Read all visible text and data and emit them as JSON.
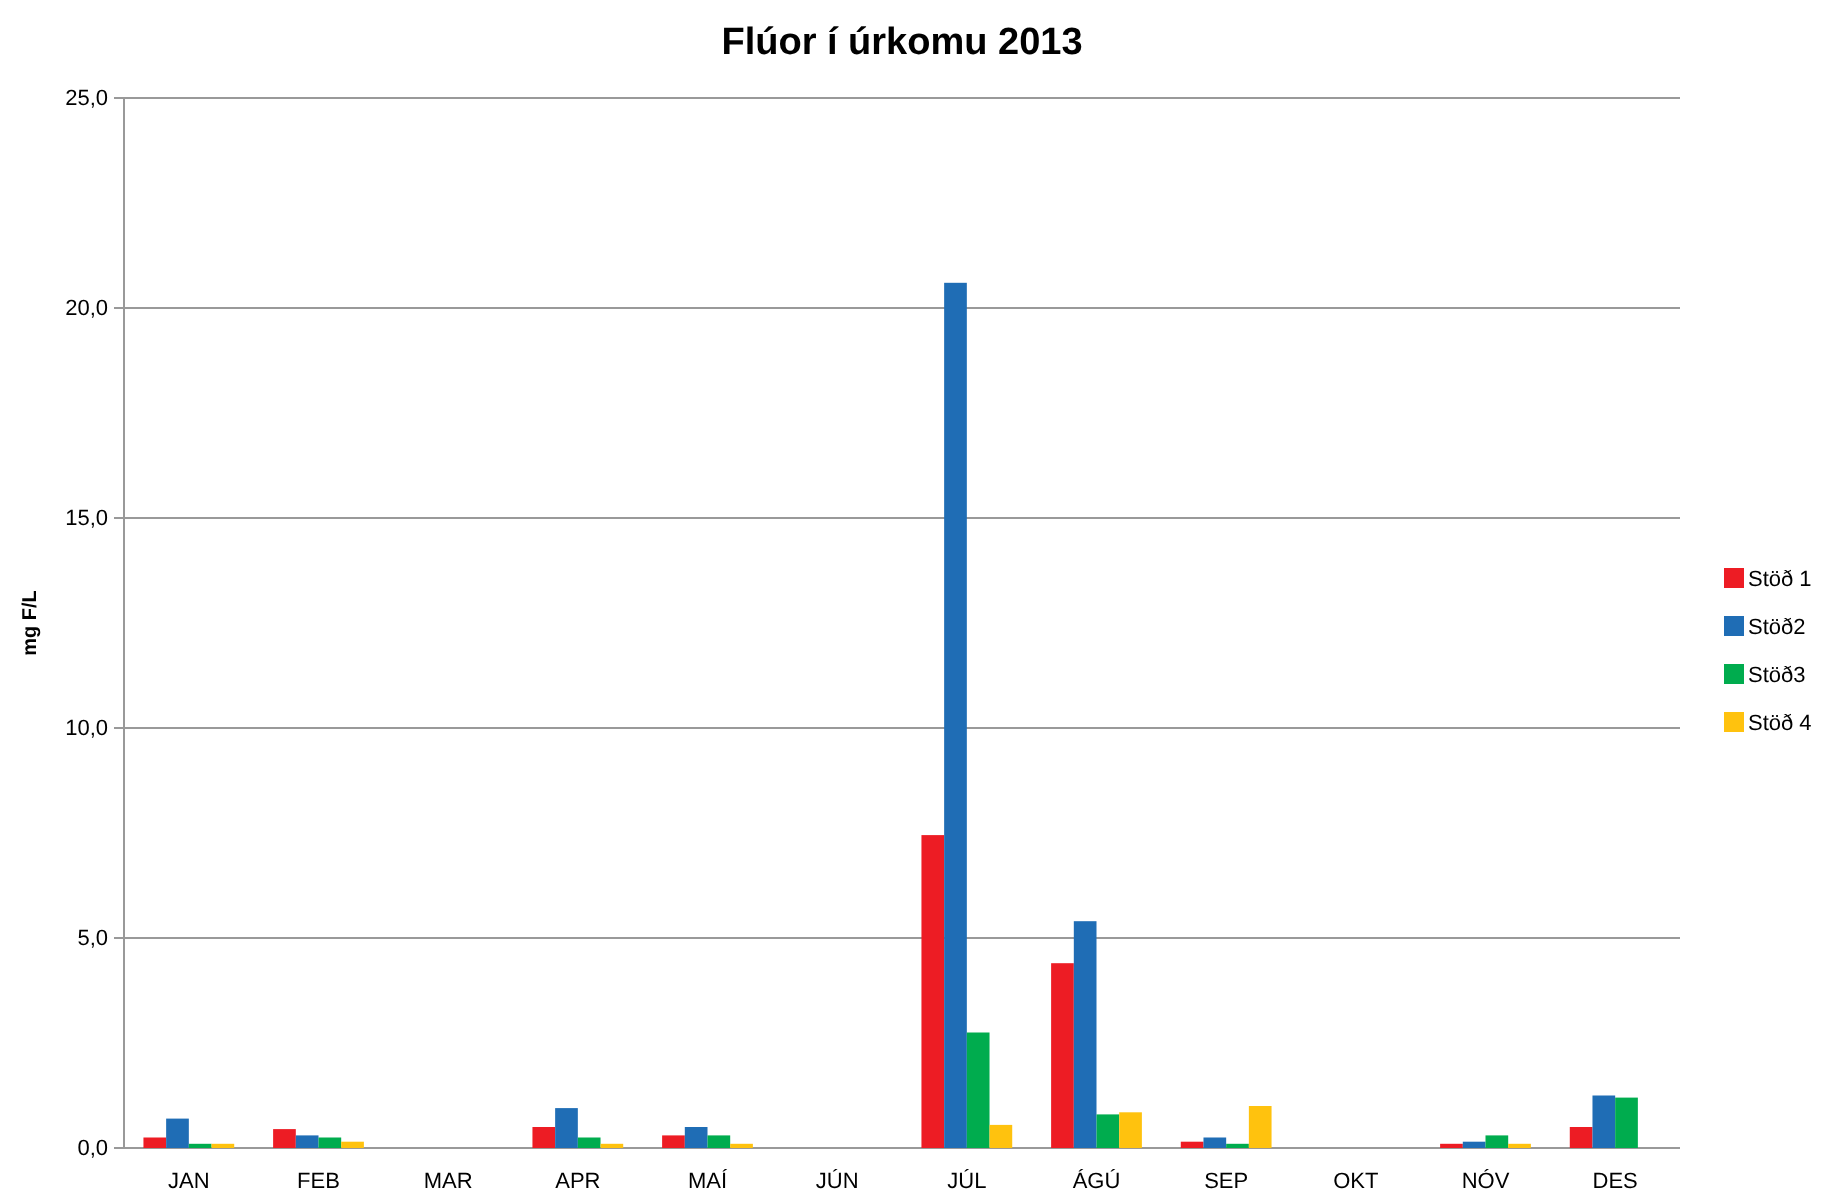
{
  "chart_data": {
    "type": "bar",
    "title": "Flúor í úrkomu 2013",
    "ylabel": "mg F/L",
    "categories": [
      "JAN",
      "FEB",
      "MAR",
      "APR",
      "MAÍ",
      "JÚN",
      "JÚL",
      "ÁGÚ",
      "SEP",
      "OKT",
      "NÓV",
      "DES"
    ],
    "series": [
      {
        "name": "Stöð 1",
        "color": "#ed1c24",
        "values": [
          0.25,
          0.45,
          null,
          0.5,
          0.3,
          null,
          7.45,
          4.4,
          0.15,
          null,
          0.1,
          0.5
        ]
      },
      {
        "name": "Stöð2",
        "color": "#1f6db5",
        "values": [
          0.7,
          0.3,
          null,
          0.95,
          0.5,
          null,
          20.6,
          5.4,
          0.25,
          null,
          0.15,
          1.25
        ]
      },
      {
        "name": "Stöð3",
        "color": "#00ac4e",
        "values": [
          0.1,
          0.25,
          null,
          0.25,
          0.3,
          null,
          2.75,
          0.8,
          0.1,
          null,
          0.3,
          1.2
        ]
      },
      {
        "name": "Stöð 4",
        "color": "#ffc20e",
        "values": [
          0.1,
          0.15,
          null,
          0.1,
          0.1,
          null,
          0.55,
          0.85,
          1.0,
          null,
          0.1,
          null
        ]
      }
    ],
    "ylim": [
      0,
      25
    ],
    "yticks": [
      {
        "value": 0,
        "label": "0,0"
      },
      {
        "value": 5,
        "label": "5,0"
      },
      {
        "value": 10,
        "label": "10,0"
      },
      {
        "value": 15,
        "label": "15,0"
      },
      {
        "value": 20,
        "label": "20,0"
      },
      {
        "value": 25,
        "label": "25,0"
      }
    ],
    "grid": "y",
    "legend": "right"
  }
}
